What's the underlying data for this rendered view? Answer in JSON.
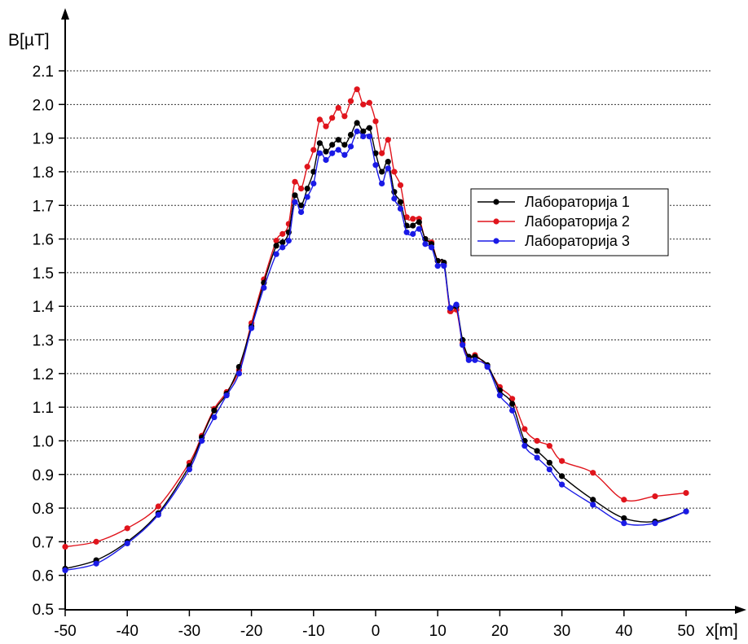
{
  "chart_data": {
    "type": "line",
    "title": "",
    "xlabel": "x[m]",
    "ylabel": "B[µT]",
    "xlim": [
      -50,
      50
    ],
    "ylim": [
      0.5,
      2.1
    ],
    "xticks": [
      -50,
      -40,
      -30,
      -20,
      -10,
      0,
      10,
      20,
      30,
      40,
      50
    ],
    "xtick_labels": [
      "-50",
      "-40",
      "-30",
      "-20",
      "-10",
      "0",
      "10",
      "20",
      "30",
      "40",
      "50"
    ],
    "yticks": [
      0.5,
      0.6,
      0.7,
      0.8,
      0.9,
      1.0,
      1.1,
      1.2,
      1.3,
      1.4,
      1.5,
      1.6,
      1.7,
      1.8,
      1.9,
      2.0,
      2.1
    ],
    "ytick_labels": [
      "0.5",
      "0.6",
      "0.7",
      "0.8",
      "0.9",
      "1.0",
      "1.1",
      "1.2",
      "1.3",
      "1.4",
      "1.5",
      "1.6",
      "1.7",
      "1.8",
      "1.9",
      "2.0",
      "2.1"
    ],
    "grid": "horizontal dotted",
    "legend_position": "right",
    "series": [
      {
        "name": "Лабораторија 1",
        "color": "#000000",
        "x": [
          -50,
          -45,
          -40,
          -35,
          -30,
          -28,
          -26,
          -24,
          -22,
          -20,
          -18,
          -16,
          -15,
          -14,
          -13,
          -12,
          -11,
          -10,
          -9,
          -8,
          -7,
          -6,
          -5,
          -4,
          -3,
          -2,
          -1,
          0,
          1,
          2,
          3,
          4,
          5,
          6,
          7,
          8,
          9,
          10,
          11,
          12,
          13,
          14,
          15,
          16,
          18,
          20,
          22,
          24,
          26,
          28,
          30,
          35,
          40,
          45,
          50
        ],
        "y": [
          0.62,
          0.645,
          0.7,
          0.785,
          0.925,
          1.01,
          1.09,
          1.14,
          1.22,
          1.34,
          1.47,
          1.58,
          1.59,
          1.62,
          1.73,
          1.7,
          1.75,
          1.8,
          1.885,
          1.86,
          1.88,
          1.895,
          1.88,
          1.91,
          1.945,
          1.92,
          1.93,
          1.855,
          1.8,
          1.83,
          1.74,
          1.71,
          1.64,
          1.64,
          1.65,
          1.6,
          1.585,
          1.535,
          1.53,
          1.395,
          1.4,
          1.3,
          1.25,
          1.25,
          1.225,
          1.15,
          1.11,
          1.0,
          0.97,
          0.935,
          0.895,
          0.825,
          0.77,
          0.76,
          0.79
        ]
      },
      {
        "name": "Лабораторија 2",
        "color": "#e0141c",
        "x": [
          -50,
          -45,
          -40,
          -35,
          -30,
          -28,
          -26,
          -24,
          -22,
          -20,
          -18,
          -16,
          -15,
          -14,
          -13,
          -12,
          -11,
          -10,
          -9,
          -8,
          -7,
          -6,
          -5,
          -4,
          -3,
          -2,
          -1,
          0,
          1,
          2,
          3,
          4,
          5,
          6,
          7,
          8,
          9,
          10,
          11,
          12,
          13,
          14,
          15,
          16,
          18,
          20,
          22,
          24,
          26,
          28,
          30,
          35,
          40,
          45,
          50
        ],
        "y": [
          0.685,
          0.7,
          0.74,
          0.805,
          0.935,
          1.015,
          1.095,
          1.145,
          1.21,
          1.35,
          1.48,
          1.595,
          1.615,
          1.645,
          1.77,
          1.75,
          1.815,
          1.865,
          1.955,
          1.935,
          1.96,
          1.99,
          1.965,
          2.01,
          2.045,
          2.0,
          2.005,
          1.95,
          1.855,
          1.895,
          1.8,
          1.76,
          1.665,
          1.66,
          1.66,
          1.6,
          1.59,
          1.535,
          1.525,
          1.385,
          1.39,
          1.29,
          1.245,
          1.255,
          1.22,
          1.16,
          1.125,
          1.035,
          1.0,
          0.985,
          0.94,
          0.905,
          0.825,
          0.835,
          0.845
        ]
      },
      {
        "name": "Лабораторија 3",
        "color": "#1a1ae6",
        "x": [
          -50,
          -45,
          -40,
          -35,
          -30,
          -28,
          -26,
          -24,
          -22,
          -20,
          -18,
          -16,
          -15,
          -14,
          -13,
          -12,
          -11,
          -10,
          -9,
          -8,
          -7,
          -6,
          -5,
          -4,
          -3,
          -2,
          -1,
          0,
          1,
          2,
          3,
          4,
          5,
          6,
          7,
          8,
          9,
          10,
          11,
          12,
          13,
          14,
          15,
          16,
          18,
          20,
          22,
          24,
          26,
          28,
          30,
          35,
          40,
          45,
          50
        ],
        "y": [
          0.615,
          0.635,
          0.695,
          0.78,
          0.915,
          1.0,
          1.07,
          1.135,
          1.2,
          1.335,
          1.455,
          1.555,
          1.575,
          1.595,
          1.71,
          1.68,
          1.725,
          1.765,
          1.855,
          1.835,
          1.855,
          1.865,
          1.85,
          1.875,
          1.92,
          1.905,
          1.905,
          1.82,
          1.765,
          1.81,
          1.72,
          1.69,
          1.62,
          1.615,
          1.63,
          1.585,
          1.575,
          1.52,
          1.52,
          1.395,
          1.405,
          1.285,
          1.24,
          1.24,
          1.22,
          1.135,
          1.09,
          0.985,
          0.95,
          0.915,
          0.87,
          0.81,
          0.755,
          0.755,
          0.79
        ]
      }
    ]
  }
}
